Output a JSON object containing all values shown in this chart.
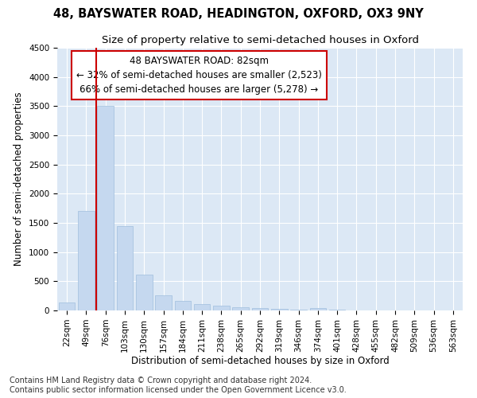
{
  "title": "48, BAYSWATER ROAD, HEADINGTON, OXFORD, OX3 9NY",
  "subtitle": "Size of property relative to semi-detached houses in Oxford",
  "xlabel": "Distribution of semi-detached houses by size in Oxford",
  "ylabel": "Number of semi-detached properties",
  "categories": [
    "22sqm",
    "49sqm",
    "76sqm",
    "103sqm",
    "130sqm",
    "157sqm",
    "184sqm",
    "211sqm",
    "238sqm",
    "265sqm",
    "292sqm",
    "319sqm",
    "346sqm",
    "374sqm",
    "401sqm",
    "428sqm",
    "455sqm",
    "482sqm",
    "509sqm",
    "536sqm",
    "563sqm"
  ],
  "values": [
    130,
    1700,
    3500,
    1450,
    620,
    260,
    160,
    110,
    85,
    55,
    35,
    25,
    18,
    40,
    7,
    5,
    4,
    3,
    3,
    2,
    2
  ],
  "bar_color": "#c5d8ef",
  "bar_edge_color": "#a0bedd",
  "vline_color": "#cc0000",
  "annotation_title": "48 BAYSWATER ROAD: 82sqm",
  "annotation_line1": "← 32% of semi-detached houses are smaller (2,523)",
  "annotation_line2": "66% of semi-detached houses are larger (5,278) →",
  "annotation_box_color": "#ffffff",
  "annotation_box_edge": "#cc0000",
  "ylim": [
    0,
    4500
  ],
  "yticks": [
    0,
    500,
    1000,
    1500,
    2000,
    2500,
    3000,
    3500,
    4000,
    4500
  ],
  "footer_line1": "Contains HM Land Registry data © Crown copyright and database right 2024.",
  "footer_line2": "Contains public sector information licensed under the Open Government Licence v3.0.",
  "title_fontsize": 10.5,
  "subtitle_fontsize": 9.5,
  "axis_label_fontsize": 8.5,
  "tick_fontsize": 7.5,
  "annotation_fontsize": 8.5,
  "footer_fontsize": 7,
  "background_color": "#ffffff",
  "plot_bg_color": "#dce8f5"
}
